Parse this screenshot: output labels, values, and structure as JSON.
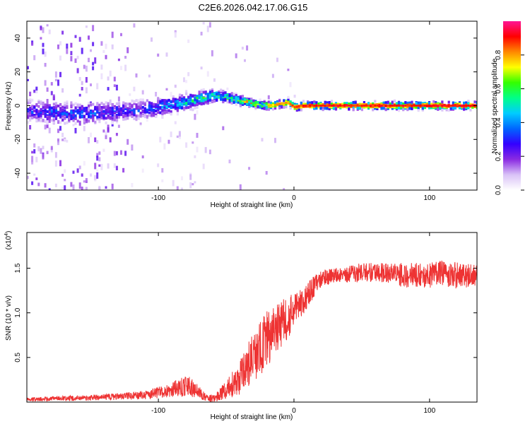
{
  "figure_title": "C2E6.2026.042.17.06.G15",
  "chart_data": [
    {
      "type": "heatmap",
      "name": "spectrogram",
      "xlabel": "Height of straight line (km)",
      "ylabel": "Frequency (Hz)",
      "xlim": [
        -197,
        135
      ],
      "ylim": [
        -50,
        50
      ],
      "x_ticks": [
        -100,
        0,
        100
      ],
      "y_ticks": [
        -40,
        -20,
        0,
        20,
        40
      ],
      "x_tick_labels": [
        "-100",
        "0",
        "100"
      ],
      "y_tick_labels": [
        "-40",
        "-20",
        "0",
        "20",
        "40"
      ],
      "colorbar": {
        "label": "Normalized spectral amplitude",
        "range": [
          0,
          1
        ],
        "ticks": [
          0.0,
          0.2,
          0.4,
          0.6,
          0.8
        ],
        "tick_labels": [
          "0.0",
          "0.2",
          "0.4",
          "0.6",
          "0.8"
        ],
        "colors": [
          "#ffffff",
          "#d9c2f7",
          "#8a2be2",
          "#3300ff",
          "#0066ff",
          "#00ccff",
          "#00ff88",
          "#33ff00",
          "#ffff00",
          "#ff8800",
          "#ff0000",
          "#ff1493"
        ]
      },
      "ridge": {
        "x": [
          -197,
          -180,
          -160,
          -140,
          -120,
          -100,
          -80,
          -70,
          -60,
          -50,
          -40,
          -30,
          -20,
          -10,
          -5,
          0,
          5,
          10,
          20,
          40,
          60,
          80,
          100,
          120,
          135
        ],
        "frequency_hz": [
          -3,
          -4,
          -5,
          -4,
          -3,
          -1,
          2,
          4,
          6,
          5,
          3,
          1,
          0,
          1,
          2,
          -1,
          0,
          0,
          0,
          0,
          0,
          0,
          0,
          0,
          0
        ],
        "amplitude": [
          0.28,
          0.3,
          0.32,
          0.3,
          0.28,
          0.35,
          0.45,
          0.5,
          0.55,
          0.58,
          0.62,
          0.7,
          0.75,
          0.8,
          0.82,
          0.85,
          0.88,
          0.9,
          0.9,
          0.9,
          0.9,
          0.9,
          0.9,
          0.9,
          0.88
        ],
        "spread_hz": [
          9,
          9,
          9,
          9,
          8,
          8,
          7,
          6,
          5,
          4,
          4,
          3,
          3,
          3,
          3,
          3,
          3,
          3,
          3,
          3,
          3,
          3,
          3,
          3,
          3
        ]
      }
    },
    {
      "type": "line",
      "name": "snr",
      "xlabel": "Height of straight line (km)",
      "ylabel": "SNR (10 * v/v)",
      "y_scale_label": "(x10",
      "y_scale_exponent": "4",
      "xlim": [
        -197,
        135
      ],
      "ylim": [
        0,
        1.9
      ],
      "x_ticks": [
        -100,
        0,
        100
      ],
      "y_ticks": [
        0.5,
        1.0,
        1.5
      ],
      "x_tick_labels": [
        "-100",
        "0",
        "100"
      ],
      "y_tick_labels": [
        "0.5",
        "1.0",
        "1.5"
      ],
      "series": [
        {
          "name": "SNR",
          "color": "#ee3333",
          "envelope_x": [
            -197,
            -170,
            -150,
            -130,
            -110,
            -95,
            -85,
            -78,
            -72,
            -65,
            -60,
            -55,
            -50,
            -45,
            -40,
            -35,
            -30,
            -25,
            -20,
            -15,
            -10,
            -5,
            0,
            5,
            10,
            15,
            20,
            30,
            40,
            50,
            60,
            70,
            80,
            90,
            100,
            110,
            120,
            135
          ],
          "center": [
            0.03,
            0.04,
            0.05,
            0.06,
            0.08,
            0.12,
            0.16,
            0.18,
            0.13,
            0.05,
            0.04,
            0.08,
            0.14,
            0.2,
            0.28,
            0.38,
            0.5,
            0.6,
            0.7,
            0.78,
            0.86,
            0.95,
            1.02,
            1.1,
            1.2,
            1.3,
            1.38,
            1.42,
            1.44,
            1.45,
            1.45,
            1.45,
            1.42,
            1.43,
            1.42,
            1.44,
            1.42,
            1.42
          ],
          "noise": [
            0.02,
            0.03,
            0.03,
            0.04,
            0.05,
            0.07,
            0.1,
            0.12,
            0.08,
            0.04,
            0.04,
            0.07,
            0.1,
            0.15,
            0.2,
            0.24,
            0.28,
            0.3,
            0.32,
            0.3,
            0.28,
            0.25,
            0.2,
            0.16,
            0.14,
            0.12,
            0.1,
            0.09,
            0.1,
            0.11,
            0.11,
            0.12,
            0.14,
            0.14,
            0.14,
            0.15,
            0.15,
            0.12
          ]
        }
      ]
    }
  ]
}
